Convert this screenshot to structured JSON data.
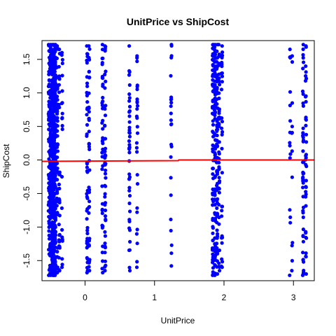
{
  "chart_data": {
    "type": "scatter",
    "title": "UnitPrice vs ShipCost",
    "xlabel": "UnitPrice",
    "ylabel": "ShipCost",
    "xlim": [
      -0.62,
      3.3
    ],
    "ylim": [
      -1.8,
      1.78
    ],
    "xticks": [
      0,
      1,
      2,
      3
    ],
    "xtick_labels": [
      "0",
      "1",
      "2",
      "3"
    ],
    "yticks": [
      -1.5,
      -1.0,
      -0.5,
      0.0,
      0.5,
      1.0,
      1.5
    ],
    "ytick_labels": [
      "-1.5",
      "-1.0",
      "-0.5",
      "0.0",
      "0.5",
      "1.0",
      "1.5"
    ],
    "grid": false,
    "point_color": "#0000ff",
    "fit_line_color": "#ff0000",
    "columns": [
      {
        "x": -0.52,
        "count": 60,
        "ymin": -1.72,
        "ymax": 1.72
      },
      {
        "x": -0.5,
        "count": 120,
        "ymin": -1.72,
        "ymax": 1.72
      },
      {
        "x": -0.47,
        "count": 180,
        "ymin": -1.72,
        "ymax": 1.72
      },
      {
        "x": -0.45,
        "count": 220,
        "ymin": -1.72,
        "ymax": 1.72
      },
      {
        "x": -0.43,
        "count": 120,
        "ymin": -1.72,
        "ymax": 1.72
      },
      {
        "x": -0.4,
        "count": 50,
        "ymin": -1.68,
        "ymax": 1.7
      },
      {
        "x": -0.37,
        "count": 30,
        "ymin": -1.65,
        "ymax": 1.65
      },
      {
        "x": -0.33,
        "count": 20,
        "ymin": -1.6,
        "ymax": 1.6
      },
      {
        "x": 0.03,
        "count": 45,
        "ymin": -1.68,
        "ymax": 1.7
      },
      {
        "x": 0.06,
        "count": 40,
        "ymin": -1.65,
        "ymax": 1.7
      },
      {
        "x": 0.25,
        "count": 40,
        "ymin": -1.68,
        "ymax": 1.72
      },
      {
        "x": 0.29,
        "count": 45,
        "ymin": -1.65,
        "ymax": 1.7
      },
      {
        "x": 0.64,
        "count": 40,
        "ymin": -1.65,
        "ymax": 1.7
      },
      {
        "x": 0.75,
        "count": 25,
        "ymin": -1.6,
        "ymax": 1.55
      },
      {
        "x": 1.24,
        "count": 22,
        "ymin": -1.58,
        "ymax": 1.72
      },
      {
        "x": 1.84,
        "count": 70,
        "ymin": -1.72,
        "ymax": 1.72
      },
      {
        "x": 1.87,
        "count": 90,
        "ymin": -1.72,
        "ymax": 1.72
      },
      {
        "x": 1.9,
        "count": 70,
        "ymin": -1.7,
        "ymax": 1.72
      },
      {
        "x": 1.93,
        "count": 40,
        "ymin": -1.65,
        "ymax": 1.72
      },
      {
        "x": 1.97,
        "count": 30,
        "ymin": -1.6,
        "ymax": 1.7
      },
      {
        "x": 2.95,
        "count": 14,
        "ymin": -1.72,
        "ymax": 1.65
      },
      {
        "x": 2.98,
        "count": 10,
        "ymin": -1.65,
        "ymax": 1.55
      },
      {
        "x": 3.14,
        "count": 45,
        "ymin": -1.72,
        "ymax": 1.72
      },
      {
        "x": 3.18,
        "count": 35,
        "ymin": -1.7,
        "ymax": 1.7
      }
    ],
    "fit_line": [
      {
        "x": -0.62,
        "y": -0.02
      },
      {
        "x": 1.34,
        "y": -0.01
      },
      {
        "x": 1.35,
        "y": 0.0
      },
      {
        "x": 3.3,
        "y": 0.0
      }
    ]
  }
}
